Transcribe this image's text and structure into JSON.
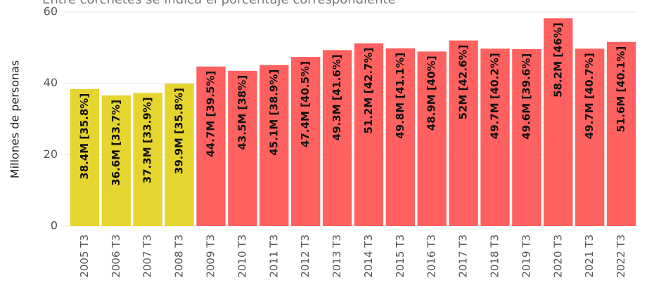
{
  "chart_data": {
    "type": "bar",
    "subtitle": "Entre corchetes se indica el porcentaje correspondiente",
    "y_label": "Millones de personas",
    "categories": [
      "2005 T3",
      "2006 T3",
      "2007 T3",
      "2008 T3",
      "2009 T3",
      "2010 T3",
      "2011 T3",
      "2012 T3",
      "2013 T3",
      "2014 T3",
      "2015 T3",
      "2016 T3",
      "2017 T3",
      "2018 T3",
      "2019 T3",
      "2020 T3",
      "2021 T3",
      "2022 T3"
    ],
    "values": [
      38.4,
      36.6,
      37.3,
      39.9,
      44.7,
      43.5,
      45.1,
      47.4,
      49.3,
      51.2,
      49.8,
      48.9,
      52,
      49.7,
      49.6,
      58.2,
      49.7,
      51.6
    ],
    "value_labels": [
      "38.4M [35.8%]",
      "36.6M [33.7%]",
      "37.3M [33.9%]",
      "39.9M [35.8%]",
      "44.7M [39.5%]",
      "43.5M [38%]",
      "45.1M [38.9%]",
      "47.4M [40.5%]",
      "49.3M [41.6%]",
      "51.2M [42.7%]",
      "49.8M [41.1%]",
      "48.9M [40%]",
      "52M [42.6%]",
      "49.7M [40.2%]",
      "49.6M [39.6%]",
      "58.2M [46%]",
      "49.7M [40.7%]",
      "51.6M [40.1%]"
    ],
    "colors": [
      "#e5d52e",
      "#e5d52e",
      "#e5d52e",
      "#e5d52e",
      "#ff6060",
      "#ff6060",
      "#ff6060",
      "#ff6060",
      "#ff6060",
      "#ff6060",
      "#ff6060",
      "#ff6060",
      "#ff6060",
      "#ff6060",
      "#ff6060",
      "#ff6060",
      "#ff6060",
      "#ff6060"
    ],
    "ylim": [
      0,
      60
    ],
    "yticks": [
      0,
      20,
      40,
      60
    ],
    "grid": true
  }
}
